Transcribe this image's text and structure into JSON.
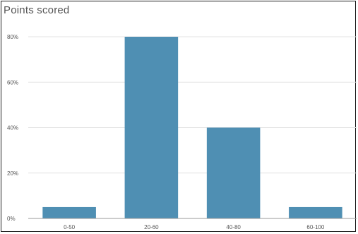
{
  "chart_data": {
    "type": "bar",
    "title": "Points scored",
    "categories": [
      "0-50",
      "20-60",
      "40-80",
      "60-100"
    ],
    "values": [
      5,
      80,
      40,
      5
    ],
    "ylim": [
      0,
      80
    ],
    "yticks": [
      {
        "value": 0,
        "label": "0%"
      },
      {
        "value": 20,
        "label": "20%"
      },
      {
        "value": 40,
        "label": "40%"
      },
      {
        "value": 60,
        "label": "60%"
      },
      {
        "value": 80,
        "label": "80%"
      }
    ],
    "bar_color": "#4f8fb3",
    "grid_color": "#e3e3e3",
    "grid": true,
    "legend": "none"
  }
}
